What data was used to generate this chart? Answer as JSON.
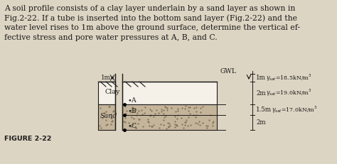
{
  "text_lines": [
    "A soil profile consists of a clay layer underlain by a sand layer as shown in",
    "Fig.2-22. If a tube is inserted into the bottom sand layer (Fig.2-22) and the",
    "water level rises to 1m above the ground surface, determine the vertical ef-",
    "fective stress and pore water pressures at A, B, and C."
  ],
  "figure_label": "FIGURE 2-22",
  "gwl_label": "GWL",
  "clay_label": "Clay",
  "sand_label": "Sand",
  "tube_height_label": "1m",
  "dim_1m_gwl": "1m",
  "dim_2m_clay": "2m",
  "dim_1p5m": "1.5m",
  "dim_2m_sand": "2m",
  "gamma_1": "18.5kN/m",
  "gamma_2": "19.0kN/m",
  "gamma_3": "17.0kN/m",
  "point_A": "A",
  "point_B": "B",
  "point_C": "C",
  "bg_color": "#ddd5c3",
  "line_color": "#1a1a1a",
  "clay_color": "#f5f0e8",
  "sand_color": "#c4b49a",
  "sand_dot_color": "#7a6a50",
  "white_color": "#ffffff"
}
